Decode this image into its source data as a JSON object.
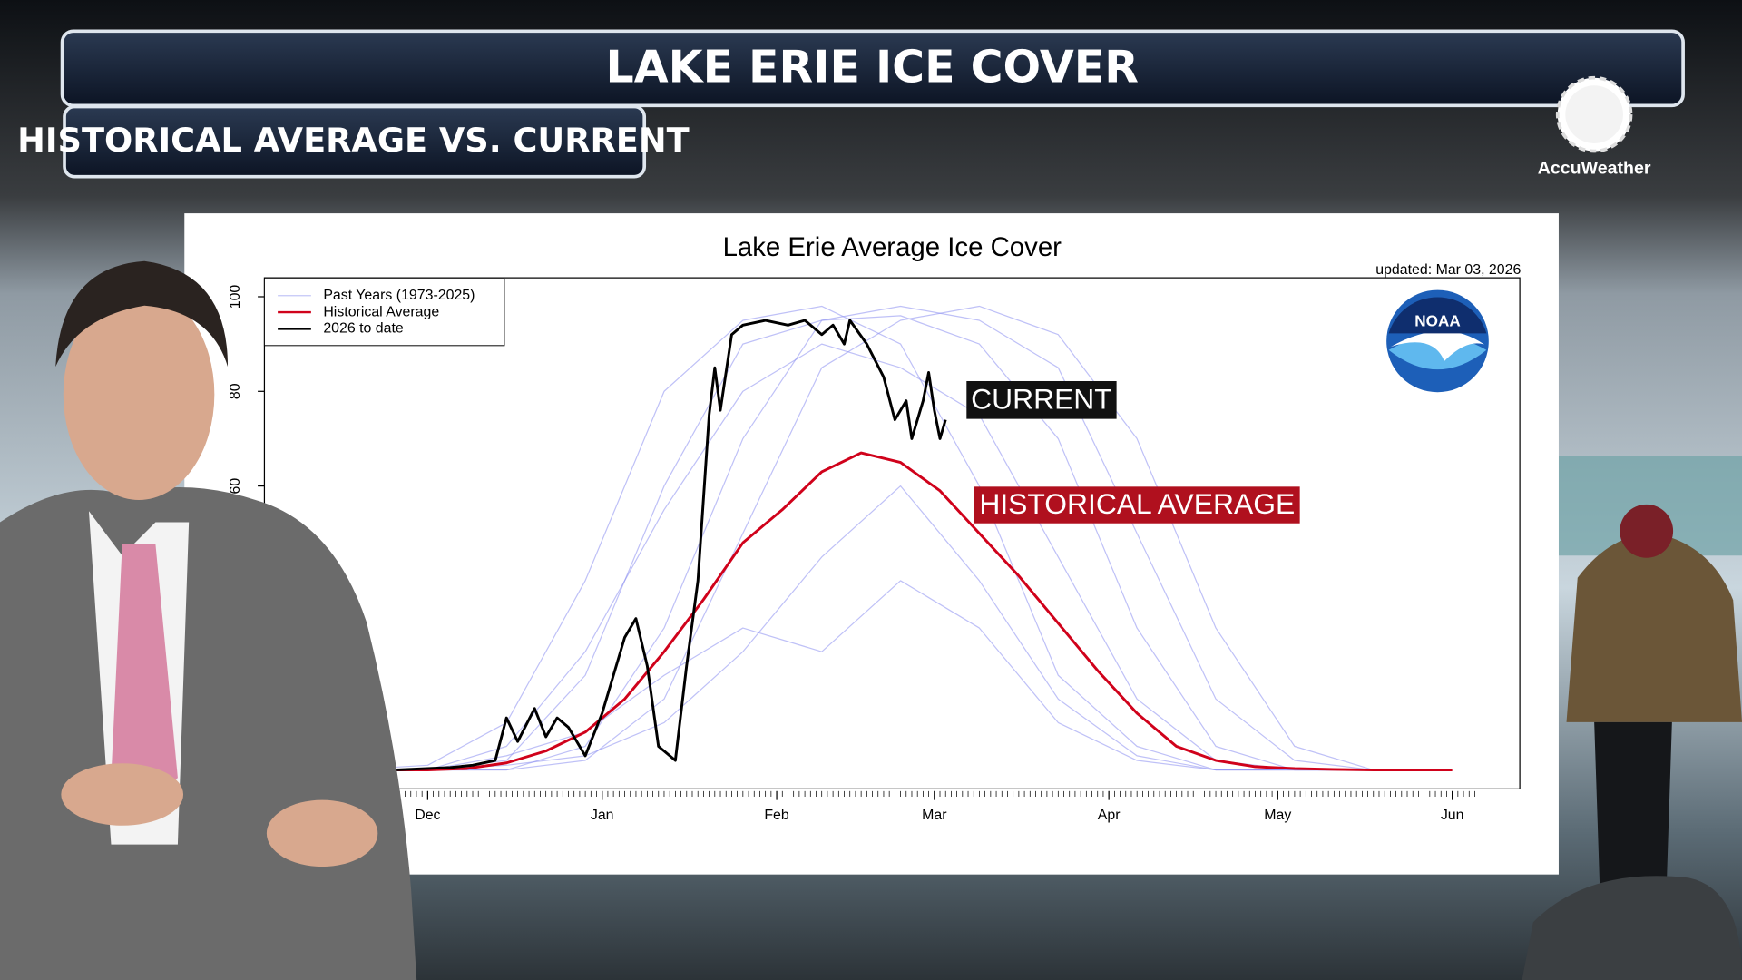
{
  "header": {
    "title": "LAKE ERIE ICE COVER",
    "subtitle": "HISTORICAL AVERAGE VS. CURRENT",
    "brand": "AccuWeather"
  },
  "chart_data": {
    "type": "line",
    "title": "Lake Erie Average Ice Cover",
    "note": "updated: Mar 03, 2026",
    "logo": "NOAA",
    "xlim": [
      -29,
      194
    ],
    "ylim": [
      -4,
      104
    ],
    "xticks": [
      {
        "value": 0,
        "label": "Dec"
      },
      {
        "value": 31,
        "label": "Jan"
      },
      {
        "value": 62,
        "label": "Feb"
      },
      {
        "value": 90,
        "label": "Mar"
      },
      {
        "value": 121,
        "label": "Apr"
      },
      {
        "value": 151,
        "label": "May"
      },
      {
        "value": 182,
        "label": "Jun"
      }
    ],
    "yticks": [
      60,
      80,
      100
    ],
    "series": [
      {
        "name": "Past Years (1973-2025)",
        "color": "#8a8ef0",
        "x": [
          -14,
          0,
          14,
          28,
          42,
          56,
          70,
          84,
          98,
          112,
          126,
          140,
          154,
          168
        ],
        "values": [
          [
            0,
            0,
            2,
            20,
            60,
            90,
            95,
            96,
            90,
            70,
            30,
            5,
            0,
            0
          ],
          [
            0,
            0,
            0,
            5,
            30,
            70,
            95,
            98,
            95,
            85,
            50,
            15,
            2,
            0
          ],
          [
            0,
            1,
            10,
            40,
            80,
            95,
            98,
            90,
            60,
            20,
            5,
            0,
            0,
            0
          ],
          [
            0,
            0,
            1,
            3,
            10,
            25,
            45,
            60,
            40,
            15,
            3,
            0,
            0,
            0
          ],
          [
            0,
            0,
            0,
            2,
            15,
            50,
            85,
            95,
            98,
            92,
            70,
            30,
            5,
            0
          ],
          [
            0,
            0,
            3,
            8,
            20,
            30,
            25,
            40,
            30,
            10,
            2,
            0,
            0,
            0
          ],
          [
            0,
            0,
            5,
            25,
            55,
            80,
            90,
            85,
            75,
            45,
            15,
            2,
            0,
            0
          ]
        ]
      },
      {
        "name": "Historical Average",
        "color": "#d0021b",
        "x": [
          -6,
          0,
          7,
          14,
          21,
          28,
          35,
          42,
          49,
          56,
          63,
          70,
          77,
          84,
          91,
          98,
          105,
          112,
          119,
          126,
          133,
          140,
          147,
          154,
          161,
          168,
          182
        ],
        "values": [
          0,
          0,
          0.3,
          1.5,
          4,
          8,
          15,
          25,
          36,
          48,
          55,
          63,
          67,
          65,
          59,
          50,
          41,
          31,
          21,
          12,
          5,
          2,
          0.7,
          0.3,
          0.1,
          0,
          0
        ]
      },
      {
        "name": "2026 to date",
        "color": "#000000",
        "x": [
          -6,
          4,
          8,
          12,
          14,
          16,
          19,
          21,
          23,
          25,
          28,
          31,
          35,
          37,
          39,
          41,
          44,
          46,
          48,
          50,
          51,
          52,
          54,
          56,
          60,
          64,
          67,
          70,
          72,
          74,
          75,
          78,
          81,
          83,
          85,
          86,
          88,
          89,
          90,
          91,
          92
        ],
        "values": [
          0,
          0.5,
          1,
          2,
          11,
          6,
          13,
          7,
          11,
          9,
          3,
          12,
          28,
          32,
          22,
          5,
          2,
          22,
          40,
          75,
          85,
          76,
          92,
          94,
          95,
          94,
          95,
          92,
          94,
          90,
          95,
          90,
          83,
          74,
          78,
          70,
          78,
          84,
          76,
          70,
          74
        ]
      }
    ],
    "annotations": [
      {
        "text": "CURRENT",
        "color": "#111111"
      },
      {
        "text": "HISTORICAL AVERAGE",
        "color": "#b0101e"
      }
    ]
  }
}
